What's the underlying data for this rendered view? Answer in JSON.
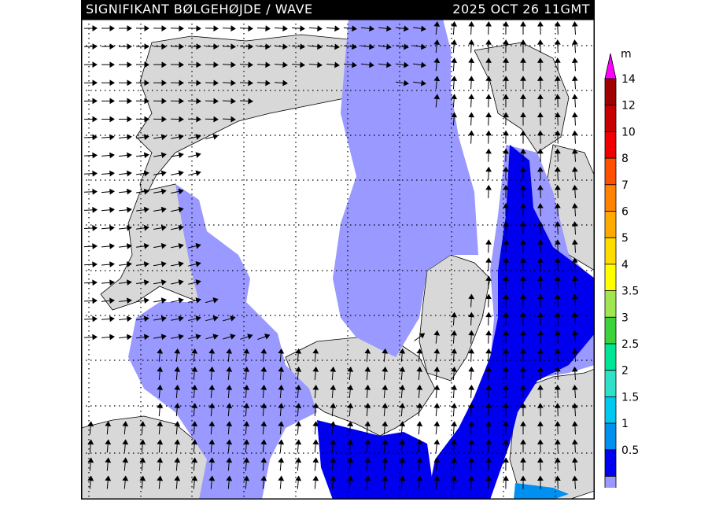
{
  "header": {
    "title": "SIGNIFIKANT BØLGEHØJDE / WAVE",
    "timestamp": "2025 OCT 26 11GMT"
  },
  "legend": {
    "unit": "m",
    "levels": [
      {
        "label": "14",
        "color": "#a00000"
      },
      {
        "label": "12",
        "color": "#c80000"
      },
      {
        "label": "10",
        "color": "#f00000"
      },
      {
        "label": "8",
        "color": "#ff5000"
      },
      {
        "label": "7",
        "color": "#ff8200"
      },
      {
        "label": "6",
        "color": "#ffaa00"
      },
      {
        "label": "5",
        "color": "#ffdc00"
      },
      {
        "label": "4",
        "color": "#ffff00"
      },
      {
        "label": "3.5",
        "color": "#a0e650"
      },
      {
        "label": "3",
        "color": "#3cd23c"
      },
      {
        "label": "2.5",
        "color": "#00e696"
      },
      {
        "label": "2",
        "color": "#30e0c8"
      },
      {
        "label": "1.5",
        "color": "#00c8f0"
      },
      {
        "label": "1",
        "color": "#0090f0"
      },
      {
        "label": "0.5",
        "color": "#0000f0"
      }
    ],
    "bottom_color": "#9999ff",
    "top_arrow_color": "#ff00ff",
    "bottom_arrow_color": "#d8d8d8"
  },
  "colors": {
    "land": "#d8d8d8",
    "sea_calm": "#ffffff",
    "wave_0_5_1": "#9999ff",
    "wave_1_1_5": "#0000ee",
    "wave_1_5_2": "#0090f0"
  }
}
